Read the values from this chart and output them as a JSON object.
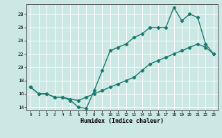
{
  "title": "",
  "xlabel": "Humidex (Indice chaleur)",
  "bg_color": "#cce8e4",
  "grid_color": "#ffffff",
  "line_color": "#1a7a6e",
  "xlim": [
    -0.5,
    23.5
  ],
  "ylim": [
    13.5,
    29.5
  ],
  "xticks": [
    0,
    1,
    2,
    3,
    4,
    5,
    6,
    7,
    8,
    9,
    10,
    11,
    12,
    13,
    14,
    15,
    16,
    17,
    18,
    19,
    20,
    21,
    22,
    23
  ],
  "yticks": [
    14,
    16,
    18,
    20,
    22,
    24,
    26,
    28
  ],
  "series1_x": [
    0,
    1,
    2,
    3,
    4,
    5,
    6,
    7,
    8,
    9,
    10,
    11,
    12,
    13,
    14,
    15,
    16,
    17,
    18,
    19,
    20,
    21,
    22,
    23
  ],
  "series1_y": [
    17.0,
    16.0,
    16.0,
    15.5,
    15.5,
    15.2,
    15.0,
    15.5,
    16.0,
    16.5,
    17.0,
    17.5,
    18.0,
    18.5,
    19.5,
    20.5,
    21.0,
    21.5,
    22.0,
    22.5,
    23.0,
    23.5,
    23.0,
    22.0
  ],
  "series2_x": [
    0,
    1,
    2,
    3,
    4,
    5,
    6,
    7,
    8,
    9,
    10,
    11,
    12,
    13,
    14,
    15,
    16,
    17,
    18,
    19,
    20,
    21,
    22,
    23
  ],
  "series2_y": [
    17.0,
    16.0,
    16.0,
    15.5,
    15.5,
    15.0,
    14.0,
    13.8,
    16.5,
    19.5,
    22.5,
    23.0,
    23.5,
    24.5,
    25.0,
    26.0,
    26.0,
    26.0,
    29.0,
    27.0,
    28.0,
    27.5,
    23.5,
    22.0
  ],
  "marker": "D",
  "markersize": 2.2,
  "linewidth": 1.0
}
